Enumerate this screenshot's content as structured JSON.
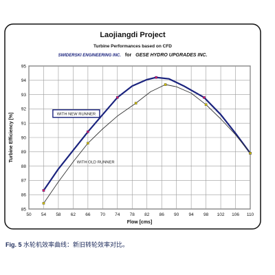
{
  "chart_data": {
    "type": "line",
    "title": "Laojiangdi Project",
    "subtitle": "Turbine Performances based on CFD",
    "credit_left": "SWIDERSKI ENGINEERING INC.",
    "credit_mid": "for",
    "credit_right": "GESE HYDRO UPGRADES INC.",
    "xlabel": "Flow [cms]",
    "ylabel": "Turbine Efficiency [%]",
    "xlim": [
      50,
      110
    ],
    "ylim": [
      85,
      95
    ],
    "xticks": [
      50,
      54,
      58,
      62,
      66,
      70,
      74,
      78,
      82,
      86,
      90,
      94,
      98,
      102,
      106,
      110
    ],
    "yticks": [
      85,
      86,
      87,
      88,
      89,
      90,
      91,
      92,
      93,
      94,
      95
    ],
    "grid": true,
    "series": [
      {
        "name": "WITH NEW RUNNER",
        "color": "#1a237e",
        "marker_color": "#d81b60",
        "points": [
          [
            54,
            86.3
          ],
          [
            66,
            90.4
          ],
          [
            74,
            92.8
          ],
          [
            84.5,
            94.2
          ],
          [
            97.5,
            92.8
          ],
          [
            110,
            88.9
          ]
        ],
        "curve": [
          [
            54,
            86.3
          ],
          [
            58,
            87.8
          ],
          [
            62,
            89.1
          ],
          [
            66,
            90.4
          ],
          [
            70,
            91.6
          ],
          [
            74,
            92.8
          ],
          [
            78,
            93.6
          ],
          [
            82,
            94.05
          ],
          [
            84.5,
            94.2
          ],
          [
            88,
            94.1
          ],
          [
            92,
            93.6
          ],
          [
            97.5,
            92.8
          ],
          [
            102,
            91.6
          ],
          [
            106,
            90.3
          ],
          [
            110,
            88.9
          ]
        ]
      },
      {
        "name": "WITH OLD  RUNNER",
        "color": "#333333",
        "marker_color": "#c9b800",
        "points": [
          [
            54,
            85.4
          ],
          [
            66,
            89.6
          ],
          [
            79,
            92.4
          ],
          [
            87,
            93.7
          ],
          [
            98,
            92.3
          ],
          [
            110,
            88.9
          ]
        ],
        "curve": [
          [
            54,
            85.4
          ],
          [
            58,
            86.9
          ],
          [
            62,
            88.3
          ],
          [
            66,
            89.6
          ],
          [
            70,
            90.6
          ],
          [
            74,
            91.5
          ],
          [
            79,
            92.4
          ],
          [
            83,
            93.2
          ],
          [
            87,
            93.7
          ],
          [
            90,
            93.55
          ],
          [
            94,
            93.1
          ],
          [
            98,
            92.3
          ],
          [
            102,
            91.3
          ],
          [
            106,
            90.2
          ],
          [
            110,
            88.9
          ]
        ]
      }
    ]
  },
  "caption": {
    "label": "Fig. 5",
    "text": "水轮机效率曲线：新旧转轮效率对比。"
  }
}
